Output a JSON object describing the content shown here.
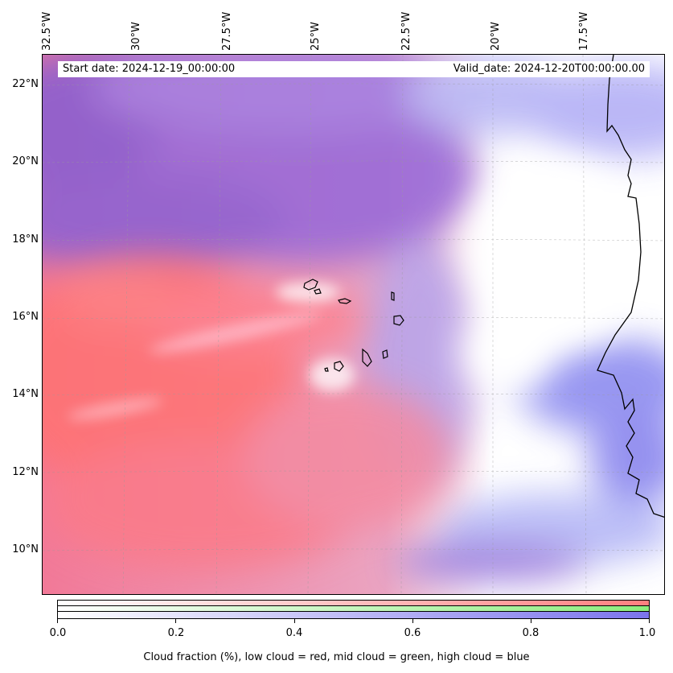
{
  "map": {
    "longitude_labels": [
      "32.5°W",
      "30°W",
      "27.5°W",
      "25°W",
      "22.5°W",
      "20°W",
      "17.5°W"
    ],
    "latitude_labels": [
      "22°N",
      "20°N",
      "18°N",
      "16°N",
      "14°N",
      "12°N",
      "10°N"
    ],
    "start_date": "Start date: 2024-12-19_00:00:00",
    "valid_date": "Valid_date: 2024-12-20T00:00:00.00",
    "colors": {
      "low_cloud": "#ff7f7f",
      "mid_cloud": "#8ced7c",
      "high_cloud": "#7b74ec",
      "coastline": "#000000"
    }
  },
  "colorbar": {
    "ticks": [
      "0.0",
      "0.2",
      "0.4",
      "0.6",
      "0.8",
      "1.0"
    ],
    "label": "Cloud fraction (%), low cloud = red, mid cloud = green, high cloud = blue"
  }
}
